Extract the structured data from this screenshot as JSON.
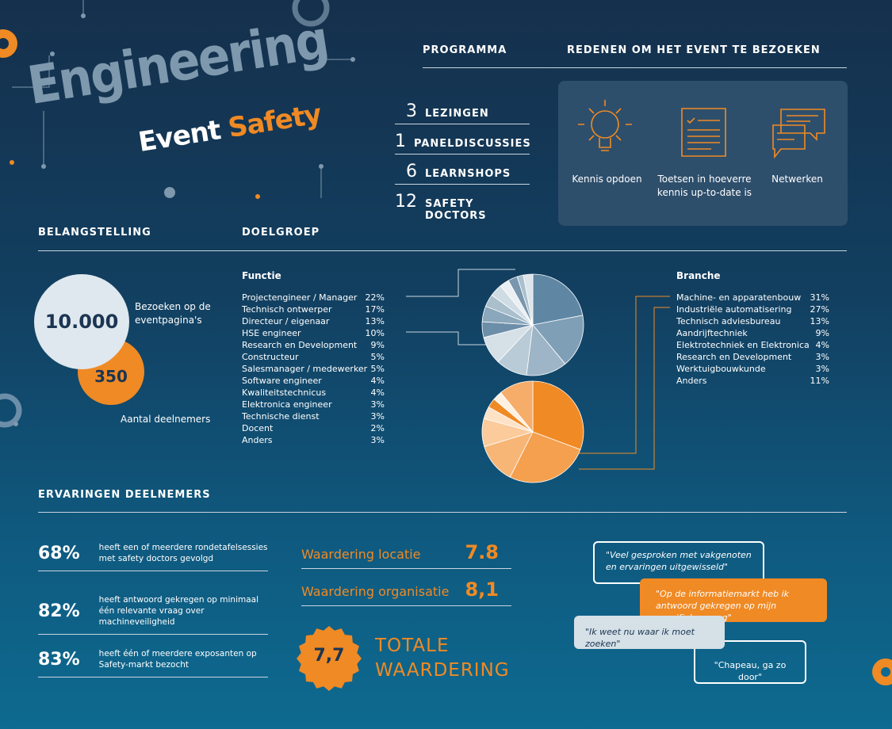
{
  "header": {
    "title_line1": "Engineering",
    "title_word1": "Event",
    "title_word2": "Safety"
  },
  "programma": {
    "heading": "PROGRAMMA",
    "items": [
      {
        "n": "3",
        "label": "LEZINGEN"
      },
      {
        "n": "1",
        "label": "PANELDISCUSSIES"
      },
      {
        "n": "6",
        "label": "LEARNSHOPS"
      },
      {
        "n": "12",
        "label": "SAFETY DOCTORS"
      }
    ]
  },
  "redenen": {
    "heading": "REDENEN OM HET EVENT TE BEZOEKEN",
    "items": [
      {
        "icon": "lightbulb-icon",
        "label": "Kennis opdoen"
      },
      {
        "icon": "document-checklist-icon",
        "label": "Toetsen in hoeverre kennis up-to-date is"
      },
      {
        "icon": "chat-bubbles-icon",
        "label": "Netwerken"
      }
    ]
  },
  "belangstelling": {
    "heading": "BELANGSTELLING",
    "visits": "10.000",
    "visits_label": "Bezoeken op de eventpagina's",
    "participants": "350",
    "participants_label": "Aantal deelnemers"
  },
  "doelgroep": {
    "heading": "DOELGROEP"
  },
  "chart_data": [
    {
      "type": "pie",
      "title": "Functie",
      "categories": [
        "Projectengineer / Manager",
        "Technisch ontwerper",
        "Directeur / eigenaar",
        "HSE engineer",
        "Research en Development",
        "Constructeur",
        "Salesmanager / medewerker",
        "Software engineer",
        "Kwaliteitstechnicus",
        "Elektronica engineer",
        "Technische dienst",
        "Docent",
        "Anders"
      ],
      "values": [
        22,
        17,
        13,
        10,
        9,
        5,
        5,
        4,
        4,
        3,
        3,
        2,
        3
      ],
      "labels": [
        "22%",
        "17%",
        "13%",
        "10%",
        "9%",
        "5%",
        "5%",
        "4%",
        "4%",
        "3%",
        "3%",
        "2%",
        "3%"
      ],
      "colors": [
        "#5f87a4",
        "#7f9fb6",
        "#9db5c6",
        "#b9cbd6",
        "#d5e0e7",
        "#6d8ea9",
        "#8aa7bb",
        "#a9bfcc",
        "#cfdce4",
        "#e9eff3",
        "#7896ad",
        "#aac0ce",
        "#dbe5eb"
      ]
    },
    {
      "type": "pie",
      "title": "Branche",
      "categories": [
        "Machine- en apparatenbouw",
        "Industriële automatisering",
        "Technisch adviesbureau",
        "Aandrijftechniek",
        "Elektrotechniek en Elektronica",
        "Research en Development",
        "Werktuigbouwkunde",
        "Anders"
      ],
      "values": [
        31,
        27,
        13,
        9,
        4,
        3,
        3,
        11
      ],
      "labels": [
        "31%",
        "27%",
        "13%",
        "9%",
        "4%",
        "3%",
        "3%",
        "11%"
      ],
      "colors": [
        "#f08a24",
        "#f4a04e",
        "#f7b676",
        "#fbcb9c",
        "#fde2c6",
        "#f08a24",
        "#fff1e2",
        "#f6ad6a"
      ]
    }
  ],
  "ervaringen": {
    "heading": "ERVARINGEN DEELNEMERS",
    "stats": [
      {
        "p": "68%",
        "d": "heeft een of meerdere rondetafelsessies met safety doctors gevolgd"
      },
      {
        "p": "82%",
        "d": "heeft antwoord gekregen op minimaal één relevante vraag over machineveiligheid"
      },
      {
        "p": "83%",
        "d": "heeft één of meerdere exposanten op Safety-markt bezocht"
      }
    ],
    "ratings": [
      {
        "label": "Waardering locatie",
        "value": "7.8"
      },
      {
        "label": "Waardering organisatie",
        "value": "8,1"
      }
    ],
    "total": {
      "value": "7,7",
      "line1": "TOTALE",
      "line2": "WAARDERING"
    },
    "quotes": [
      "\"Veel gesproken met vakgenoten en ervaringen uitgewisseld\"",
      "\"Op de informatiemarkt heb ik antwoord gekregen op mijn specifieke vraag\"",
      "\"Ik weet nu waar ik moet zoeken\"",
      "\"Chapeau, ga zo door\""
    ]
  },
  "colors": {
    "orange": "#f08a24",
    "light": "#dfe8ee",
    "panel": "#2e4f6c"
  }
}
